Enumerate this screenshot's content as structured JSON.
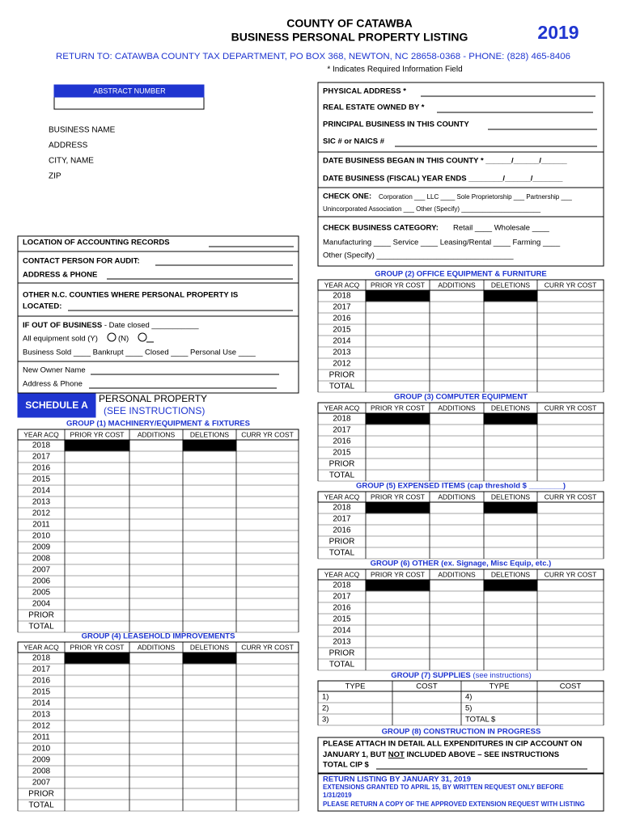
{
  "header": {
    "county": "COUNTY OF CATAWBA",
    "title": "BUSINESS PERSONAL PROPERTY LISTING",
    "year": "2019",
    "return_to": "RETURN TO: CATAWBA COUNTY TAX DEPARTMENT, PO BOX 368, NEWTON, NC 28658-0368 - PHONE: (828) 465-8406",
    "required_note": "* Indicates Required Information Field"
  },
  "abstract_number": "ABSTRACT NUMBER",
  "business_fields": [
    "BUSINESS NAME",
    "ADDRESS",
    "CITY, NAME",
    "ZIP"
  ],
  "property_fields": [
    "PHYSICAL ADDRESS *",
    "REAL ESTATE OWNED BY *",
    "PRINCIPAL BUSINESS IN THIS COUNTY",
    "SIC # or NAICS #",
    "DATE BUSINESS BEGAN IN THIS COUNTY *  ______/______/______",
    "DATE BUSINESS (FISCAL) YEAR ENDS  ________/______/_______"
  ],
  "check_one": {
    "label": "CHECK ONE:",
    "options": "Corporation ___  LLC ____ Sole Proprietorship ___  Partnership ___",
    "options2": "Unincorporated Association ___      Other (Specify) ______________________"
  },
  "check_category": {
    "label": "CHECK BUSINESS CATEGORY:",
    "line1": "Retail ____   Wholesale ____",
    "line2": "Manufacturing ____  Service ____  Leasing/Rental ____  Farming ____",
    "line3": "Other (Specify) ________________________________"
  },
  "contact": {
    "accounting": "LOCATION OF ACCOUNTING RECORDS",
    "audit": "CONTACT PERSON FOR AUDIT:",
    "address_phone": "ADDRESS & PHONE",
    "other_counties": "OTHER N.C. COUNTIES WHERE PERSONAL PROPERTY IS",
    "located": "LOCATED:",
    "out_of_business": "IF OUT OF BUSINESS",
    "date_closed": " - Date closed ___________",
    "equipment_sold": "All equipment sold (Y)",
    "no": "(N)",
    "business_status": "Business      Sold ____    Bankrupt ____  Closed ____  Personal Use ____",
    "new_owner": "New Owner Name",
    "new_owner_address": "Address & Phone"
  },
  "schedule": {
    "label": "SCHEDULE A",
    "title": "PERSONAL PROPERTY",
    "note": "(SEE INSTRUCTIONS)"
  },
  "columns": [
    "YEAR ACQ",
    "PRIOR YR COST",
    "ADDITIONS",
    "DELETIONS",
    "CURR YR COST"
  ],
  "groups": [
    {
      "title": "GROUP (1) MACHINERY/EQUIPMENT & FIXTURES",
      "rows": [
        "2018",
        "2017",
        "2016",
        "2015",
        "2014",
        "2013",
        "2012",
        "2011",
        "2010",
        "2009",
        "2008",
        "2007",
        "2006",
        "2005",
        "2004",
        "PRIOR",
        "TOTAL"
      ]
    },
    {
      "title": "GROUP (2) OFFICE EQUIPMENT & FURNITURE",
      "rows": [
        "2018",
        "2017",
        "2016",
        "2015",
        "2014",
        "2013",
        "2012",
        "PRIOR",
        "TOTAL"
      ]
    },
    {
      "title": "GROUP (3) COMPUTER EQUIPMENT",
      "rows": [
        "2018",
        "2017",
        "2016",
        "2015",
        "PRIOR",
        "TOTAL"
      ]
    },
    {
      "title": "GROUP (4) LEASEHOLD IMPROVEMENTS",
      "rows": [
        "2018",
        "2017",
        "2016",
        "2015",
        "2014",
        "2013",
        "2012",
        "2011",
        "2010",
        "2009",
        "2008",
        "2007",
        "PRIOR",
        "TOTAL"
      ]
    },
    {
      "title": "GROUP (5) EXPENSED ITEMS (cap threshold $ ________)",
      "rows": [
        "2018",
        "2017",
        "2016",
        "PRIOR",
        "TOTAL"
      ]
    },
    {
      "title": "GROUP (6) OTHER (ex. Signage, Misc Equip, etc.)",
      "rows": [
        "2018",
        "2017",
        "2016",
        "2015",
        "2014",
        "2013",
        "PRIOR",
        "TOTAL"
      ]
    }
  ],
  "supplies": {
    "title": "GROUP (7) SUPPLIES",
    "note": " (see instructions)",
    "columns": [
      "TYPE",
      "COST",
      "TYPE",
      "COST"
    ],
    "left": [
      "1)",
      "2)",
      "3)"
    ],
    "right": [
      "4)",
      "5)",
      "TOTAL $"
    ]
  },
  "construction": {
    "title": "GROUP (8) CONSTRUCTION IN PROGRESS",
    "line1": "PLEASE ATTACH IN DETAIL ALL EXPENDITURES IN CIP ACCOUNT ON",
    "line2a": "JANUARY 1, BUT ",
    "line2b": "NOT",
    "line2c": " INCLUDED ABOVE – SEE INSTRUCTIONS",
    "line3": "TOTAL CIP $"
  },
  "footer": {
    "return_by": "RETURN LISTING BY JANUARY 31, 2019",
    "extensions": "EXTENSIONS GRANTED TO APRIL 15, BY WRITTEN REQUEST ONLY BEFORE",
    "extensions_date": "1/31/2019",
    "copy": "PLEASE RETURN A COPY OF THE APPROVED EXTENSION REQUEST WITH LISTING"
  }
}
